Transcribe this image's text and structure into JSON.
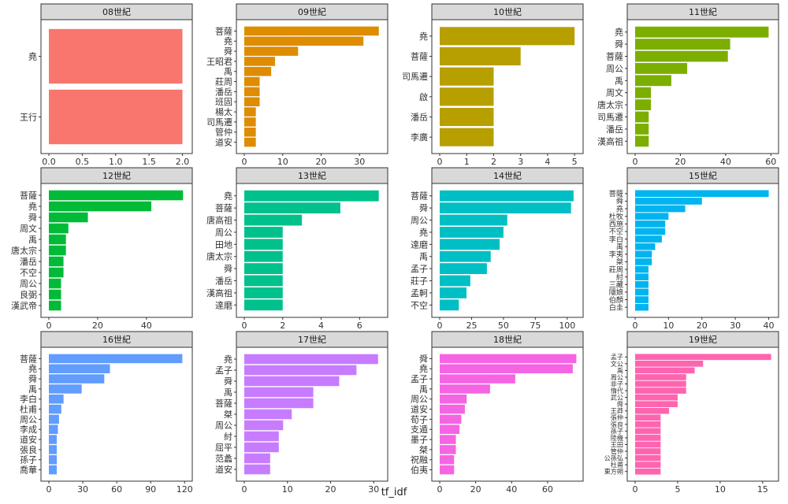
{
  "chart_data": {
    "type": "bar",
    "xlabel": "tf_idf",
    "grid": false,
    "panels": [
      {
        "title": "08世紀",
        "color": "#F8766D",
        "xlim": [
          0,
          2.1
        ],
        "ticks": [
          0,
          0.5,
          1.0,
          1.5,
          2.0
        ],
        "tick_labels": [
          "0.0",
          "0.5",
          "1.0",
          "1.5",
          "2.0"
        ],
        "categories": [
          "堯",
          "王行"
        ],
        "values": [
          2,
          2
        ]
      },
      {
        "title": "09世紀",
        "color": "#DE8C00",
        "xlim": [
          0,
          36.5
        ],
        "ticks": [
          0,
          10,
          20,
          30
        ],
        "tick_labels": [
          "0",
          "10",
          "20",
          "30"
        ],
        "categories": [
          "菩薩",
          "堯",
          "舜",
          "王昭君",
          "禹",
          "莊周",
          "潘岳",
          "班固",
          "楊太",
          "司馬遷",
          "管仲",
          "道安"
        ],
        "values": [
          35,
          31,
          14,
          8,
          7,
          4,
          4,
          4,
          3,
          3,
          3,
          3
        ]
      },
      {
        "title": "10世紀",
        "color": "#B79F00",
        "xlim": [
          0,
          5.2
        ],
        "ticks": [
          0,
          1,
          2,
          3,
          4,
          5
        ],
        "tick_labels": [
          "0",
          "1",
          "2",
          "3",
          "4",
          "5"
        ],
        "categories": [
          "堯",
          "菩薩",
          "司馬遷",
          "啟",
          "潘岳",
          "李廣"
        ],
        "values": [
          5,
          3,
          2,
          2,
          2,
          2
        ]
      },
      {
        "title": "11世紀",
        "color": "#7CAE00",
        "xlim": [
          0,
          62
        ],
        "ticks": [
          0,
          20,
          40,
          60
        ],
        "tick_labels": [
          "0",
          "20",
          "40",
          "60"
        ],
        "categories": [
          "堯",
          "舜",
          "菩薩",
          "周公",
          "禹",
          "周文",
          "唐太宗",
          "司馬遷",
          "潘岳",
          "漢高祖"
        ],
        "values": [
          59,
          42,
          41,
          23,
          16,
          7,
          7,
          6,
          6,
          6
        ]
      },
      {
        "title": "12世紀",
        "color": "#00BA38",
        "xlim": [
          0,
          57.5
        ],
        "ticks": [
          0,
          20,
          40
        ],
        "tick_labels": [
          "0",
          "20",
          "40"
        ],
        "categories": [
          "菩薩",
          "堯",
          "舜",
          "周文",
          "禹",
          "唐太宗",
          "潘岳",
          "不空",
          "周公",
          "良弼",
          "漢武帝"
        ],
        "values": [
          55,
          42,
          16,
          8,
          7,
          7,
          6,
          6,
          5,
          5,
          5
        ]
      },
      {
        "title": "13世紀",
        "color": "#00C08B",
        "xlim": [
          0,
          7.3
        ],
        "ticks": [
          0,
          2,
          4,
          6
        ],
        "tick_labels": [
          "0",
          "2",
          "4",
          "6"
        ],
        "categories": [
          "堯",
          "菩薩",
          "唐高祖",
          "周公",
          "田地",
          "唐太宗",
          "舜",
          "潘岳",
          "漢高祖",
          "達磨"
        ],
        "values": [
          7,
          5,
          3,
          2,
          2,
          2,
          2,
          2,
          2,
          2
        ]
      },
      {
        "title": "14世紀",
        "color": "#00BFC4",
        "xlim": [
          0,
          110
        ],
        "ticks": [
          0,
          25,
          50,
          75,
          100
        ],
        "tick_labels": [
          "0",
          "25",
          "50",
          "75",
          "100"
        ],
        "categories": [
          "菩薩",
          "舜",
          "周公",
          "堯",
          "達磨",
          "禹",
          "孟子",
          "莊子",
          "孟軻",
          "不空"
        ],
        "values": [
          105,
          103,
          53,
          50,
          47,
          40,
          37,
          24,
          21,
          15
        ]
      },
      {
        "title": "15世紀",
        "color": "#00B4F0",
        "xlim": [
          0,
          42
        ],
        "ticks": [
          0,
          10,
          20,
          30,
          40
        ],
        "tick_labels": [
          "0",
          "10",
          "20",
          "30",
          "40"
        ],
        "categories": [
          "菩薩",
          "舜",
          "堯",
          "杜牧",
          "西施",
          "不空",
          "李白",
          "禹",
          "李夷",
          "桀",
          "莊周",
          "紂",
          "三藏",
          "隱娘",
          "伯顏",
          "白圭"
        ],
        "values": [
          40,
          20,
          15,
          10,
          9,
          9,
          8,
          6,
          5,
          5,
          4,
          4,
          4,
          4,
          4,
          4
        ]
      },
      {
        "title": "16世紀",
        "color": "#619CFF",
        "xlim": [
          0,
          124
        ],
        "ticks": [
          0,
          30,
          60,
          90,
          120
        ],
        "tick_labels": [
          "0",
          "30",
          "60",
          "90",
          "120"
        ],
        "categories": [
          "菩薩",
          "堯",
          "舜",
          "禹",
          "李白",
          "杜甫",
          "周公",
          "李成",
          "道安",
          "張良",
          "孫子",
          "喬華"
        ],
        "values": [
          118,
          54,
          49,
          29,
          13,
          11,
          9,
          8,
          7,
          7,
          7,
          7
        ]
      },
      {
        "title": "17世紀",
        "color": "#C77CFF",
        "xlim": [
          0,
          32.5
        ],
        "ticks": [
          0,
          10,
          20,
          30
        ],
        "tick_labels": [
          "0",
          "10",
          "20",
          "30"
        ],
        "categories": [
          "堯",
          "孟子",
          "舜",
          "禹",
          "菩薩",
          "桀",
          "周公",
          "紂",
          "屈平",
          "范蠡",
          "道安"
        ],
        "values": [
          31,
          26,
          22,
          16,
          16,
          11,
          9,
          8,
          8,
          6,
          6
        ]
      },
      {
        "title": "18世紀",
        "color": "#F564E3",
        "xlim": [
          0,
          78
        ],
        "ticks": [
          0,
          20,
          40,
          60
        ],
        "tick_labels": [
          "0",
          "20",
          "40",
          "60"
        ],
        "categories": [
          "舜",
          "堯",
          "孟子",
          "禹",
          "周公",
          "道安",
          "荀子",
          "支遁",
          "墨子",
          "桀",
          "祝融",
          "伯夷"
        ],
        "values": [
          76,
          74,
          42,
          28,
          15,
          14,
          12,
          11,
          9,
          9,
          8,
          8
        ]
      },
      {
        "title": "19世紀",
        "color": "#FF64B0",
        "xlim": [
          0,
          16.5
        ],
        "ticks": [
          0,
          5,
          10,
          15
        ],
        "tick_labels": [
          "0",
          "5",
          "10",
          "15"
        ],
        "categories": [
          "孟子",
          "文公",
          "禹",
          "周公",
          "非子",
          "惰代",
          "武公",
          "舜",
          "王莽",
          "張仲",
          "張良",
          "孫子",
          "陸機",
          "王田",
          "管仲",
          "公孫弘",
          "杜甫",
          "東方朔"
        ],
        "values": [
          16,
          8,
          7,
          6,
          6,
          6,
          5,
          5,
          4,
          3,
          3,
          3,
          3,
          3,
          3,
          3,
          3,
          3
        ]
      }
    ]
  }
}
